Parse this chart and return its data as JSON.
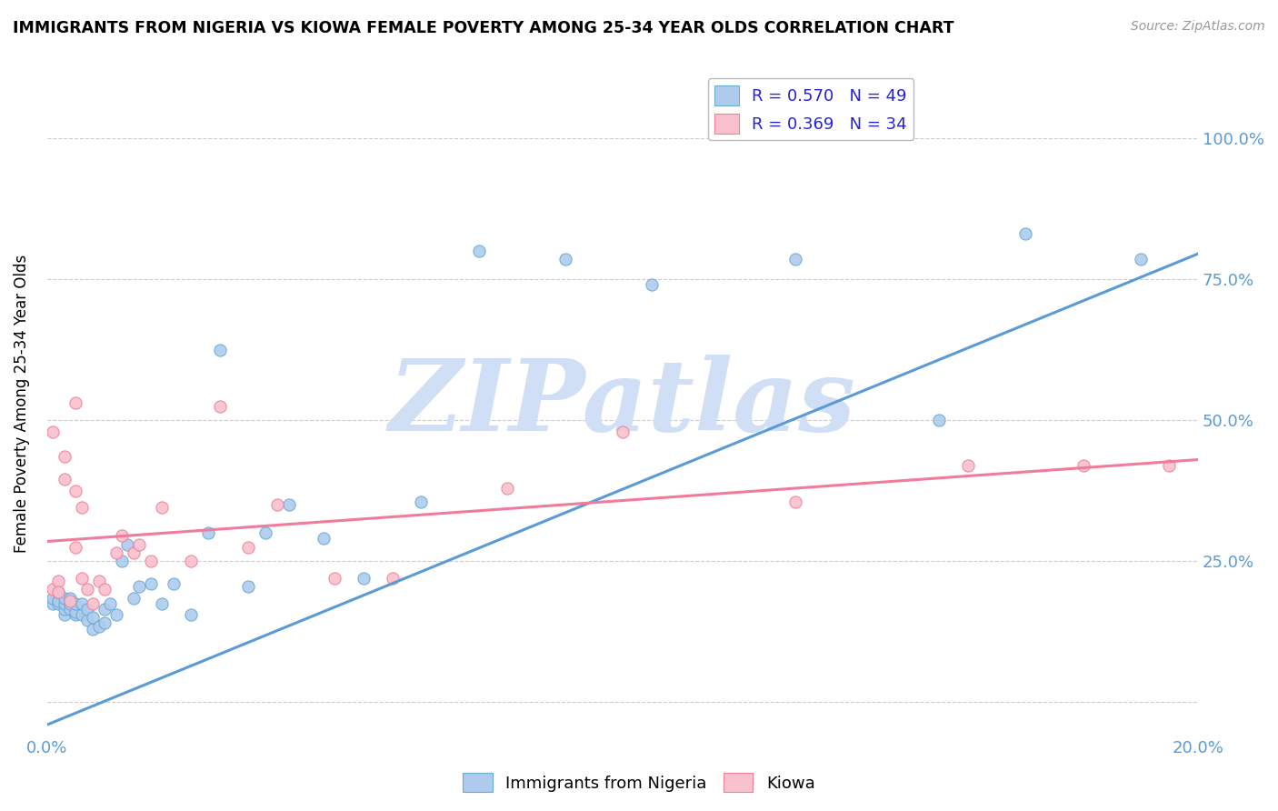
{
  "title": "IMMIGRANTS FROM NIGERIA VS KIOWA FEMALE POVERTY AMONG 25-34 YEAR OLDS CORRELATION CHART",
  "source": "Source: ZipAtlas.com",
  "ylabel": "Female Poverty Among 25-34 Year Olds",
  "xlim": [
    0.0,
    0.2
  ],
  "ylim": [
    -0.06,
    1.12
  ],
  "yticks": [
    0.0,
    0.25,
    0.5,
    0.75,
    1.0
  ],
  "ytick_labels": [
    "",
    "25.0%",
    "50.0%",
    "75.0%",
    "100.0%"
  ],
  "blue_R": "0.570",
  "blue_N": "49",
  "pink_R": "0.369",
  "pink_N": "34",
  "blue_color": "#aecbee",
  "pink_color": "#f9c0ce",
  "blue_edge_color": "#6aaad4",
  "pink_edge_color": "#f08098",
  "blue_line_color": "#5b9bd5",
  "pink_line_color": "#f07b9a",
  "watermark": "ZIPatlas",
  "watermark_color": "#d0dff5",
  "blue_scatter_x": [
    0.001,
    0.001,
    0.002,
    0.002,
    0.002,
    0.003,
    0.003,
    0.003,
    0.003,
    0.004,
    0.004,
    0.004,
    0.005,
    0.005,
    0.005,
    0.006,
    0.006,
    0.007,
    0.007,
    0.008,
    0.008,
    0.009,
    0.01,
    0.01,
    0.011,
    0.012,
    0.013,
    0.014,
    0.015,
    0.016,
    0.018,
    0.02,
    0.022,
    0.025,
    0.028,
    0.03,
    0.035,
    0.038,
    0.042,
    0.048,
    0.055,
    0.065,
    0.075,
    0.09,
    0.105,
    0.13,
    0.155,
    0.17,
    0.19
  ],
  "blue_scatter_y": [
    0.175,
    0.185,
    0.175,
    0.18,
    0.195,
    0.155,
    0.165,
    0.175,
    0.185,
    0.165,
    0.175,
    0.185,
    0.155,
    0.16,
    0.175,
    0.155,
    0.175,
    0.145,
    0.165,
    0.13,
    0.15,
    0.135,
    0.14,
    0.165,
    0.175,
    0.155,
    0.25,
    0.28,
    0.185,
    0.205,
    0.21,
    0.175,
    0.21,
    0.155,
    0.3,
    0.625,
    0.205,
    0.3,
    0.35,
    0.29,
    0.22,
    0.355,
    0.8,
    0.785,
    0.74,
    0.785,
    0.5,
    0.83,
    0.785
  ],
  "pink_scatter_x": [
    0.001,
    0.001,
    0.002,
    0.002,
    0.003,
    0.003,
    0.004,
    0.005,
    0.005,
    0.006,
    0.006,
    0.007,
    0.008,
    0.009,
    0.01,
    0.012,
    0.013,
    0.015,
    0.016,
    0.018,
    0.02,
    0.025,
    0.03,
    0.035,
    0.04,
    0.05,
    0.06,
    0.08,
    0.1,
    0.13,
    0.16,
    0.18,
    0.195,
    0.005
  ],
  "pink_scatter_y": [
    0.2,
    0.48,
    0.215,
    0.195,
    0.435,
    0.395,
    0.18,
    0.375,
    0.275,
    0.22,
    0.345,
    0.2,
    0.175,
    0.215,
    0.2,
    0.265,
    0.295,
    0.265,
    0.28,
    0.25,
    0.345,
    0.25,
    0.525,
    0.275,
    0.35,
    0.22,
    0.22,
    0.38,
    0.48,
    0.355,
    0.42,
    0.42,
    0.42,
    0.53
  ],
  "blue_line_x": [
    0.0,
    0.2
  ],
  "blue_line_y": [
    -0.04,
    0.795
  ],
  "pink_line_x": [
    0.0,
    0.2
  ],
  "pink_line_y": [
    0.285,
    0.43
  ]
}
